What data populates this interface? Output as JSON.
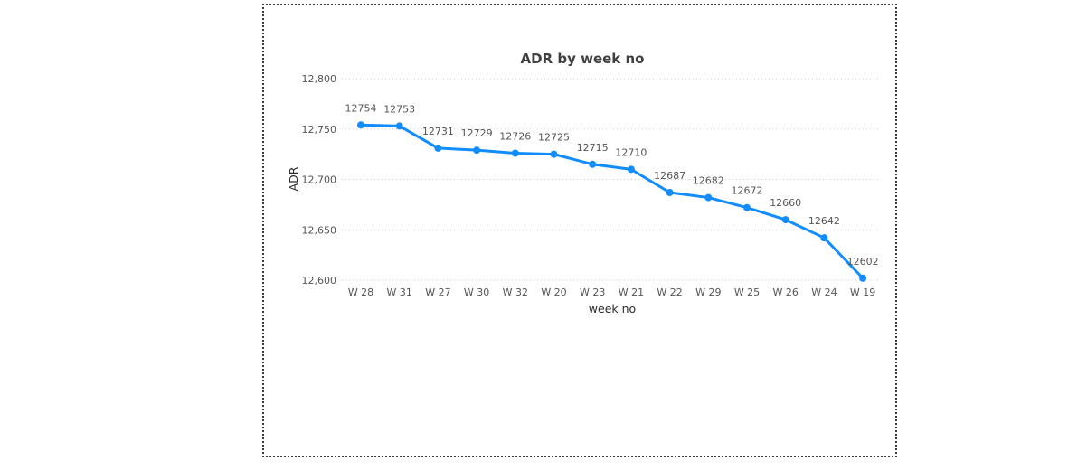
{
  "chart_data": {
    "type": "line",
    "title": "ADR by week no",
    "xlabel": "week no",
    "ylabel": "ADR",
    "categories": [
      "W 28",
      "W 31",
      "W 27",
      "W 30",
      "W 32",
      "W 20",
      "W 23",
      "W 21",
      "W 22",
      "W 29",
      "W 25",
      "W 26",
      "W 24",
      "W 19"
    ],
    "series": [
      {
        "values": [
          12754,
          12753,
          12731,
          12729,
          12726,
          12725,
          12715,
          12710,
          12687,
          12682,
          12672,
          12660,
          12642,
          12602
        ]
      }
    ],
    "data_labels": [
      "12754",
      "12753",
      "12731",
      "12729",
      "12726",
      "12725",
      "12715",
      "12710",
      "12687",
      "12682",
      "12672",
      "12660",
      "12642",
      "12602"
    ],
    "ylim": [
      12600,
      12800
    ],
    "yticks": [
      12600,
      12650,
      12700,
      12750,
      12800
    ],
    "ytick_labels": [
      "12,600",
      "12,650",
      "12,700",
      "12,750",
      "12,800"
    ],
    "grid": true,
    "line_color": "#118DFF"
  }
}
